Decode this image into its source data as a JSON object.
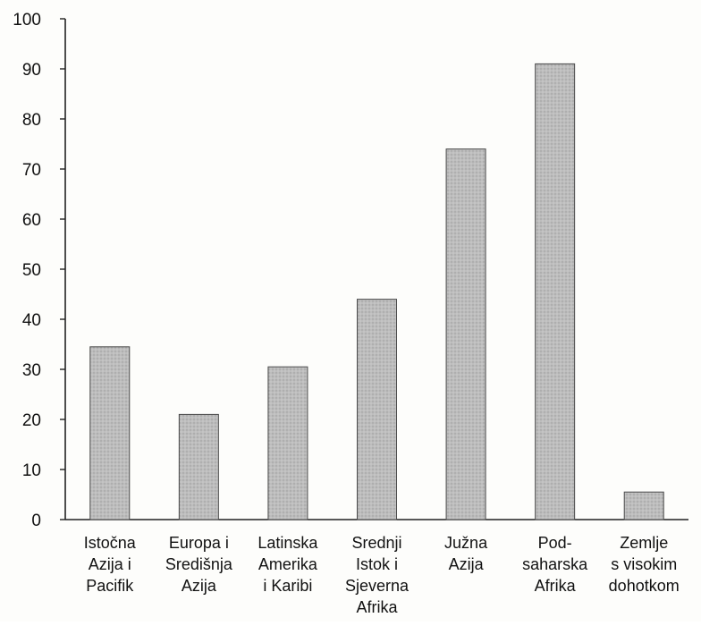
{
  "chart_data": {
    "type": "bar",
    "title": "",
    "xlabel": "",
    "ylabel": "",
    "ylim": [
      0,
      100
    ],
    "yticks": [
      0,
      10,
      20,
      30,
      40,
      50,
      60,
      70,
      80,
      90,
      100
    ],
    "grid": false,
    "legend": "none",
    "categories": [
      "Istočna Azija i Pacifik",
      "Europa i Središnja Azija",
      "Latinska Amerika i Karibi",
      "Srednji Istok i Sjeverna Afrika",
      "Južna Azija",
      "Pod-saharska Afrika",
      "Zemlje s visokim dohotkom"
    ],
    "category_lines": [
      [
        "Istočna",
        "Azija i",
        "Pacifik"
      ],
      [
        "Europa i",
        "Središnja",
        "Azija"
      ],
      [
        "Latinska",
        "Amerika",
        "i Karibi"
      ],
      [
        "Srednji",
        "Istok i",
        "Sjeverna",
        "Afrika"
      ],
      [
        "Južna",
        "Azija"
      ],
      [
        "Pod-",
        "saharska",
        "Afrika"
      ],
      [
        "Zemlje",
        "s visokim",
        "dohotkom"
      ]
    ],
    "values": [
      34.5,
      21,
      30.5,
      44,
      74,
      91,
      5.5
    ],
    "colors": {
      "bar_fill": "#b9b9b9",
      "bar_stroke": "#4a4a4a",
      "axis": "#222222"
    }
  }
}
